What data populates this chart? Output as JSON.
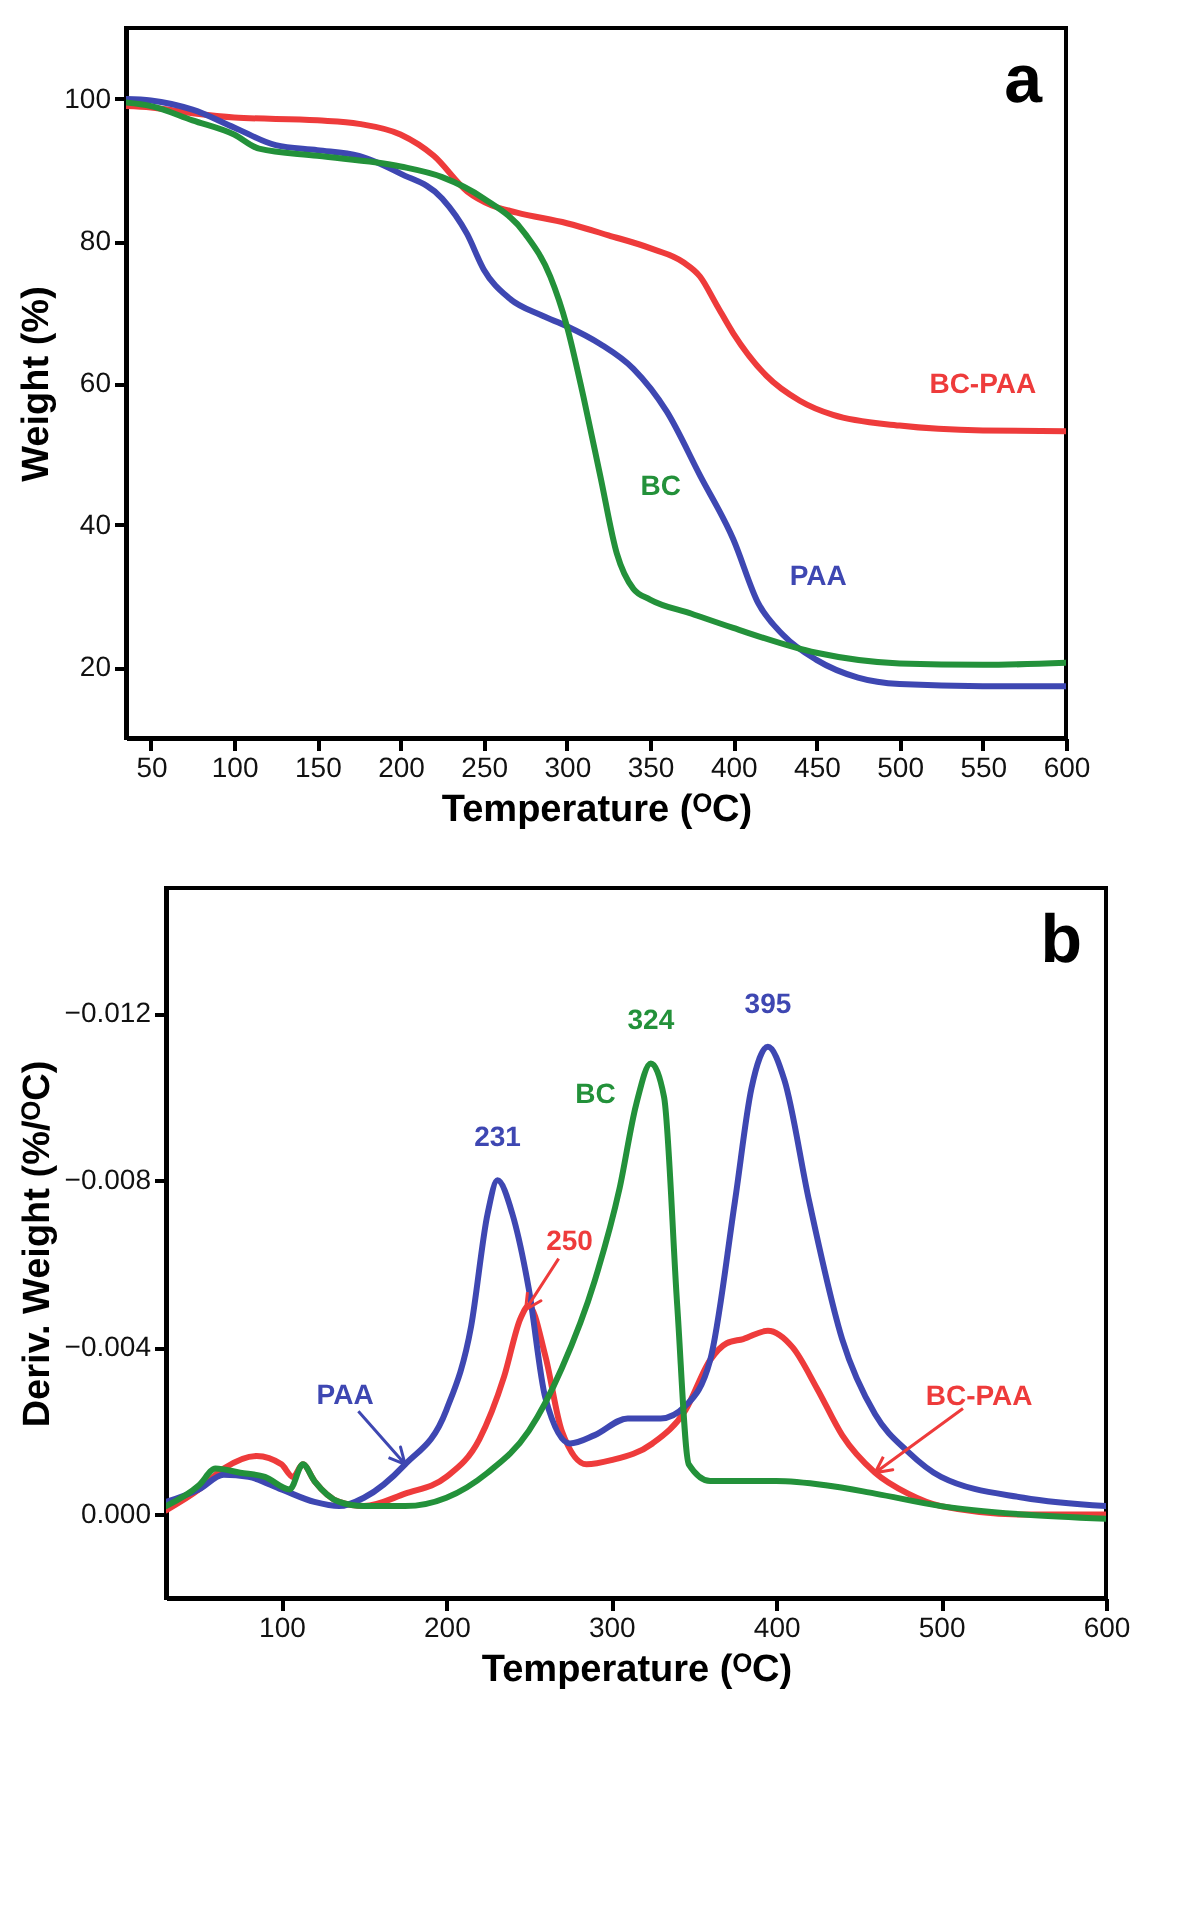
{
  "chart_data": [
    {
      "type": "line",
      "xlabel": "Temperature (ᴼC)",
      "ylabel": "Weight (%)",
      "xlim": [
        35,
        600
      ],
      "ylim": [
        10,
        110
      ],
      "xticks": [
        50,
        100,
        150,
        200,
        250,
        300,
        350,
        400,
        450,
        500,
        550,
        600
      ],
      "yticks": [
        20,
        40,
        60,
        80,
        100
      ],
      "grid": false,
      "series": [
        {
          "name": "BC-PAA",
          "color": "#ee3b3b",
          "x": [
            35,
            50,
            75,
            100,
            150,
            175,
            200,
            220,
            240,
            255,
            270,
            300,
            325,
            350,
            370,
            380,
            390,
            400,
            420,
            440,
            460,
            500,
            550,
            600
          ],
          "values": [
            99,
            98.8,
            98,
            97.4,
            97,
            96.5,
            95,
            92,
            87,
            85,
            84,
            82.5,
            80.8,
            79,
            77,
            75,
            71,
            67,
            61,
            57.5,
            55.5,
            54,
            53.3,
            53.2
          ]
        },
        {
          "name": "PAA",
          "color": "#3e47b2",
          "x": [
            35,
            50,
            75,
            100,
            125,
            150,
            175,
            200,
            225,
            240,
            250,
            265,
            285,
            300,
            320,
            340,
            360,
            380,
            400,
            415,
            430,
            450,
            475,
            500,
            550,
            600
          ],
          "values": [
            100,
            99.8,
            98.5,
            96,
            93.5,
            92.8,
            92,
            89.5,
            86,
            81,
            76,
            72,
            69.5,
            68,
            65.5,
            62,
            56,
            47,
            38,
            29,
            24.5,
            21,
            18.5,
            17.6,
            17.3,
            17.3
          ]
        },
        {
          "name": "BC",
          "color": "#23913a",
          "x": [
            35,
            50,
            75,
            100,
            115,
            150,
            200,
            225,
            250,
            275,
            290,
            300,
            310,
            320,
            330,
            340,
            350,
            375,
            400,
            450,
            500,
            550,
            600
          ],
          "values": [
            99.5,
            99,
            97,
            95,
            93,
            92,
            90.5,
            89,
            86,
            81,
            75,
            68,
            58,
            47,
            36,
            31,
            29.5,
            27.5,
            25.5,
            22,
            20.5,
            20.3,
            20.6
          ]
        }
      ],
      "annotations": [
        "a"
      ]
    },
    {
      "type": "line",
      "xlabel": "Temperature (ᴼC)",
      "ylabel": "Deriv. Weight (%/ᴼC)",
      "xlim": [
        30,
        600
      ],
      "ylim": [
        0.002,
        -0.015
      ],
      "xticks": [
        100,
        200,
        300,
        400,
        500,
        600
      ],
      "yticks": [
        -0.012,
        -0.008,
        -0.004,
        {
          "value": 0,
          "label": "0.000"
        }
      ],
      "grid": false,
      "series": [
        {
          "name": "BC-PAA",
          "color": "#ee3b3b",
          "x": [
            30,
            50,
            65,
            85,
            100,
            107,
            113,
            120,
            135,
            150,
            175,
            200,
            220,
            235,
            245,
            250,
            260,
            270,
            285,
            300,
            325,
            345,
            360,
            370,
            380,
            395,
            410,
            425,
            440,
            460,
            480,
            500,
            550,
            600
          ],
          "values": [
            -0.0001,
            -0.0006,
            -0.0011,
            -0.0014,
            -0.0012,
            -0.0009,
            -0.0012,
            -0.0008,
            -0.0003,
            -0.0002,
            -0.0005,
            -0.0009,
            -0.0018,
            -0.0033,
            -0.0047,
            -0.005,
            -0.0038,
            -0.002,
            -0.0012,
            -0.0013,
            -0.0017,
            -0.0025,
            -0.0037,
            -0.0041,
            -0.0042,
            -0.0044,
            -0.004,
            -0.003,
            -0.0019,
            -0.001,
            -0.0005,
            -0.0002,
            0,
            0
          ]
        },
        {
          "name": "PAA",
          "color": "#3e47b2",
          "x": [
            30,
            50,
            65,
            80,
            100,
            120,
            135,
            150,
            175,
            200,
            215,
            225,
            231,
            240,
            250,
            260,
            275,
            290,
            310,
            330,
            345,
            360,
            375,
            385,
            395,
            405,
            420,
            440,
            460,
            480,
            500,
            550,
            600
          ],
          "values": [
            -0.0003,
            -0.0006,
            -0.00095,
            -0.0009,
            -0.0006,
            -0.0003,
            -0.0002,
            -0.0004,
            -0.0012,
            -0.0025,
            -0.0045,
            -0.0072,
            -0.008,
            -0.0072,
            -0.0054,
            -0.0028,
            -0.0017,
            -0.0019,
            -0.0023,
            -0.0023,
            -0.0026,
            -0.0037,
            -0.0075,
            -0.0102,
            -0.0112,
            -0.0104,
            -0.0075,
            -0.0042,
            -0.0024,
            -0.0015,
            -0.0009,
            -0.0004,
            -0.0002
          ]
        },
        {
          "name": "BC",
          "color": "#23913a",
          "x": [
            30,
            50,
            60,
            75,
            90,
            105,
            113,
            120,
            135,
            150,
            175,
            200,
            225,
            250,
            270,
            290,
            305,
            315,
            324,
            332,
            340,
            347,
            360,
            400,
            430,
            460,
            500,
            550,
            600
          ],
          "values": [
            -0.0002,
            -0.0007,
            -0.0011,
            -0.001,
            -0.0009,
            -0.0006,
            -0.0012,
            -0.0008,
            -0.0003,
            -0.0002,
            -0.0002,
            -0.0004,
            -0.001,
            -0.002,
            -0.0035,
            -0.0056,
            -0.0078,
            -0.0098,
            -0.0108,
            -0.01,
            -0.005,
            -0.0012,
            -0.0008,
            -0.0008,
            -0.0007,
            -0.0005,
            -0.0002,
            0,
            0.0001
          ]
        }
      ],
      "annotations": [
        "b",
        {
          "text": "231",
          "x": 231,
          "y": -0.008
        },
        {
          "text": "250",
          "x": 248,
          "y": -0.0049
        },
        {
          "text": "324",
          "x": 324,
          "y": -0.0108
        },
        {
          "text": "395",
          "x": 395,
          "y": -0.0112
        }
      ]
    }
  ]
}
